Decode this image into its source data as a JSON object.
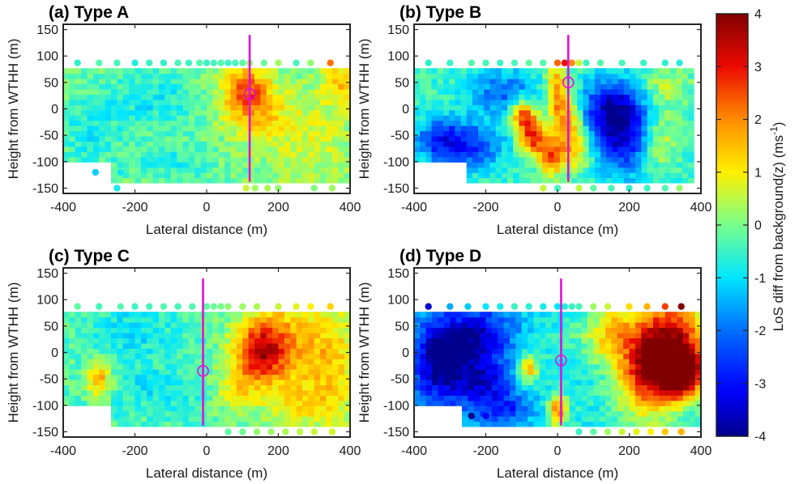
{
  "colorbar": {
    "label": "LoS diff from background(z) (ms",
    "label_sup": "-1",
    "label_close": ")",
    "min": -4,
    "max": 4,
    "ticks": [
      4,
      3,
      2,
      1,
      0,
      -1,
      -2,
      -3,
      -4
    ],
    "colormap": "jet"
  },
  "chart_data": [
    {
      "type": "heatmap",
      "title": "(a) Type A",
      "xlabel": "Lateral distance (m)",
      "ylabel": "Height from WTHH (m)",
      "xlim": [
        -400,
        400
      ],
      "ylim": [
        -160,
        160
      ],
      "xticks": [
        -400,
        -200,
        0,
        200,
        400
      ],
      "yticks": [
        150,
        100,
        50,
        0,
        -50,
        -100,
        -150
      ],
      "data_region": {
        "x": [
          -400,
          400
        ],
        "y": [
          -140,
          77
        ]
      },
      "marker_line_x": 120,
      "marker_circle": {
        "x": 120,
        "y": 28
      },
      "baseline": 0.0,
      "features": [
        {
          "x": 110,
          "y": 35,
          "value": 2.2,
          "sx": 45,
          "sy": 35
        },
        {
          "x": 150,
          "y": -10,
          "value": 1.0,
          "sx": 70,
          "sy": 40
        },
        {
          "x": 380,
          "y": 50,
          "value": 1.4,
          "sx": 40,
          "sy": 30
        },
        {
          "x": -150,
          "y": 20,
          "value": -0.9,
          "sx": 90,
          "sy": 40
        },
        {
          "x": -330,
          "y": -40,
          "value": -0.8,
          "sx": 60,
          "sy": 50
        },
        {
          "x": -100,
          "y": -100,
          "value": -0.7,
          "sx": 90,
          "sy": 30
        },
        {
          "x": 300,
          "y": -60,
          "value": 0.6,
          "sx": 80,
          "sy": 60
        }
      ],
      "scatter_top": {
        "y": 87,
        "points": [
          [
            -360,
            -0.6
          ],
          [
            -300,
            -0.3
          ],
          [
            -250,
            -0.4
          ],
          [
            -200,
            -0.7
          ],
          [
            -160,
            -0.5
          ],
          [
            -120,
            -0.6
          ],
          [
            -80,
            -0.4
          ],
          [
            -50,
            -0.5
          ],
          [
            -20,
            -0.3
          ],
          [
            0,
            -0.5
          ],
          [
            20,
            -0.4
          ],
          [
            40,
            -0.3
          ],
          [
            60,
            -0.5
          ],
          [
            80,
            -0.4
          ],
          [
            100,
            -0.2
          ],
          [
            120,
            0.2
          ],
          [
            160,
            -0.1
          ],
          [
            200,
            0.3
          ],
          [
            250,
            -0.4
          ],
          [
            290,
            0.2
          ],
          [
            345,
            2.2
          ]
        ]
      },
      "scatter_bottom": {
        "y": -150,
        "points": [
          [
            -250,
            -0.8
          ],
          [
            110,
            0.6
          ],
          [
            135,
            0.3
          ],
          [
            170,
            0.4
          ],
          [
            200,
            0.2
          ],
          [
            300,
            0.1
          ],
          [
            350,
            0.3
          ]
        ]
      },
      "scatter_extra": [
        [
          -310,
          -120,
          -1.2
        ],
        [
          -240,
          -120,
          -0.9
        ]
      ]
    },
    {
      "type": "heatmap",
      "title": "(b) Type B",
      "xlabel": "Lateral distance (m)",
      "ylabel": "Height from WTHH (m)",
      "xlim": [
        -400,
        400
      ],
      "ylim": [
        -160,
        160
      ],
      "xticks": [
        -400,
        -200,
        0,
        200,
        400
      ],
      "yticks": [
        150,
        100,
        50,
        0,
        -50,
        -100,
        -150
      ],
      "data_region": {
        "x": [
          -400,
          380
        ],
        "y": [
          -140,
          77
        ]
      },
      "marker_line_x": 30,
      "marker_circle": {
        "x": 30,
        "y": 50
      },
      "baseline": -0.5,
      "features": [
        {
          "x": 180,
          "y": -50,
          "value": -3.5,
          "sx": 70,
          "sy": 50
        },
        {
          "x": 150,
          "y": 10,
          "value": -2.5,
          "sx": 60,
          "sy": 35
        },
        {
          "x": -320,
          "y": -60,
          "value": -3.0,
          "sx": 50,
          "sy": 30
        },
        {
          "x": -220,
          "y": -70,
          "value": -2.2,
          "sx": 50,
          "sy": 30
        },
        {
          "x": -150,
          "y": 30,
          "value": -2.2,
          "sx": 60,
          "sy": 30
        },
        {
          "x": -70,
          "y": -50,
          "value": 2.8,
          "sx": 25,
          "sy": 25
        },
        {
          "x": -100,
          "y": -10,
          "value": 2.5,
          "sx": 25,
          "sy": 20
        },
        {
          "x": 0,
          "y": 30,
          "value": 2.0,
          "sx": 20,
          "sy": 50
        },
        {
          "x": 40,
          "y": -30,
          "value": 1.5,
          "sx": 25,
          "sy": 40
        },
        {
          "x": -20,
          "y": -90,
          "value": 2.2,
          "sx": 25,
          "sy": 25
        },
        {
          "x": 60,
          "y": -80,
          "value": 1.0,
          "sx": 40,
          "sy": 30
        },
        {
          "x": 280,
          "y": -60,
          "value": 1.2,
          "sx": 40,
          "sy": 40
        },
        {
          "x": 300,
          "y": 40,
          "value": 0.5,
          "sx": 50,
          "sy": 30
        }
      ],
      "scatter_top": {
        "y": 87,
        "points": [
          [
            -360,
            -0.6
          ],
          [
            -300,
            -0.5
          ],
          [
            -240,
            -0.3
          ],
          [
            -200,
            -0.4
          ],
          [
            -160,
            -0.5
          ],
          [
            -120,
            -0.4
          ],
          [
            -80,
            -0.2
          ],
          [
            -40,
            -0.3
          ],
          [
            0,
            2.3
          ],
          [
            20,
            3.0
          ],
          [
            40,
            2.0
          ],
          [
            60,
            0.6
          ],
          [
            80,
            -0.5
          ],
          [
            120,
            -0.3
          ],
          [
            180,
            -0.4
          ],
          [
            240,
            -0.5
          ],
          [
            300,
            -0.6
          ],
          [
            340,
            -0.7
          ]
        ]
      },
      "scatter_bottom": {
        "y": -150,
        "points": [
          [
            -40,
            0.6
          ],
          [
            0,
            -0.4
          ],
          [
            60,
            0.5
          ],
          [
            100,
            -0.2
          ],
          [
            150,
            -0.4
          ],
          [
            200,
            -0.6
          ],
          [
            250,
            -0.5
          ],
          [
            300,
            -0.3
          ],
          [
            340,
            0.2
          ]
        ]
      },
      "scatter_extra": [
        [
          -200,
          -120,
          -1.2
        ]
      ]
    },
    {
      "type": "heatmap",
      "title": "(c) Type C",
      "xlabel": "Lateral distance (m)",
      "ylabel": "Height from WTHH (m)",
      "xlim": [
        -400,
        400
      ],
      "ylim": [
        -160,
        160
      ],
      "xticks": [
        -400,
        -200,
        0,
        200,
        400
      ],
      "yticks": [
        150,
        100,
        50,
        0,
        -50,
        -100,
        -150
      ],
      "data_region": {
        "x": [
          -400,
          400
        ],
        "y": [
          -140,
          77
        ]
      },
      "marker_line_x": -10,
      "marker_circle": {
        "x": -10,
        "y": -35
      },
      "baseline": -0.3,
      "features": [
        {
          "x": 150,
          "y": 0,
          "value": 2.3,
          "sx": 50,
          "sy": 40
        },
        {
          "x": 200,
          "y": 20,
          "value": 1.5,
          "sx": 80,
          "sy": 60
        },
        {
          "x": 350,
          "y": -20,
          "value": 1.2,
          "sx": 60,
          "sy": 90
        },
        {
          "x": -300,
          "y": -50,
          "value": 1.8,
          "sx": 25,
          "sy": 25
        },
        {
          "x": -200,
          "y": 40,
          "value": -1.0,
          "sx": 80,
          "sy": 40
        },
        {
          "x": -150,
          "y": -70,
          "value": -0.9,
          "sx": 90,
          "sy": 30
        },
        {
          "x": 80,
          "y": -70,
          "value": 0.8,
          "sx": 40,
          "sy": 30
        },
        {
          "x": 250,
          "y": -100,
          "value": 0.6,
          "sx": 80,
          "sy": 30
        }
      ],
      "scatter_top": {
        "y": 87,
        "points": [
          [
            -360,
            -0.2
          ],
          [
            -300,
            -0.4
          ],
          [
            -240,
            -0.3
          ],
          [
            -200,
            -0.5
          ],
          [
            -160,
            -0.4
          ],
          [
            -120,
            -0.3
          ],
          [
            -80,
            -0.4
          ],
          [
            -40,
            -0.3
          ],
          [
            0,
            -0.2
          ],
          [
            20,
            -0.1
          ],
          [
            40,
            0.0
          ],
          [
            60,
            0.2
          ],
          [
            100,
            0.3
          ],
          [
            140,
            0.4
          ],
          [
            200,
            0.6
          ],
          [
            250,
            0.8
          ],
          [
            290,
            1.0
          ],
          [
            345,
            1.3
          ]
        ]
      },
      "scatter_bottom": {
        "y": -150,
        "points": [
          [
            60,
            -0.2
          ],
          [
            100,
            -0.1
          ],
          [
            140,
            0.2
          ],
          [
            180,
            0.3
          ],
          [
            220,
            0.4
          ],
          [
            260,
            0.5
          ],
          [
            300,
            0.6
          ],
          [
            350,
            0.7
          ]
        ]
      },
      "scatter_extra": [
        [
          -250,
          -120,
          -0.9
        ]
      ]
    },
    {
      "type": "heatmap",
      "title": "(d) Type D",
      "xlabel": "Lateral distance (m)",
      "ylabel": "Height from WTHH (m)",
      "xlim": [
        -400,
        400
      ],
      "ylim": [
        -160,
        160
      ],
      "xticks": [
        -400,
        -200,
        0,
        200,
        400
      ],
      "yticks": [
        150,
        100,
        50,
        0,
        -50,
        -100,
        -150
      ],
      "data_region": {
        "x": [
          -400,
          400
        ],
        "y": [
          -140,
          77
        ]
      },
      "marker_line_x": 10,
      "marker_circle": {
        "x": 10,
        "y": -15
      },
      "baseline": -0.8,
      "features": [
        {
          "x": -330,
          "y": -20,
          "value": -3.8,
          "sx": 60,
          "sy": 60
        },
        {
          "x": -220,
          "y": 30,
          "value": -3.5,
          "sx": 70,
          "sy": 40
        },
        {
          "x": -200,
          "y": -60,
          "value": -3.0,
          "sx": 60,
          "sy": 30
        },
        {
          "x": -150,
          "y": -110,
          "value": -2.5,
          "sx": 60,
          "sy": 20
        },
        {
          "x": 320,
          "y": 20,
          "value": 3.2,
          "sx": 70,
          "sy": 60
        },
        {
          "x": 350,
          "y": -40,
          "value": 3.5,
          "sx": 40,
          "sy": 30
        },
        {
          "x": 250,
          "y": -40,
          "value": 2.5,
          "sx": 60,
          "sy": 60
        },
        {
          "x": 150,
          "y": 40,
          "value": 1.0,
          "sx": 50,
          "sy": 40
        },
        {
          "x": -80,
          "y": -30,
          "value": 1.5,
          "sx": 20,
          "sy": 20
        },
        {
          "x": 0,
          "y": -110,
          "value": 2.2,
          "sx": 20,
          "sy": 20
        },
        {
          "x": 50,
          "y": 20,
          "value": -0.5,
          "sx": 60,
          "sy": 30
        }
      ],
      "scatter_top": {
        "y": 87,
        "points": [
          [
            -360,
            -3.5
          ],
          [
            -300,
            -1.5
          ],
          [
            -250,
            -1.2
          ],
          [
            -200,
            -1.0
          ],
          [
            -160,
            -0.8
          ],
          [
            -120,
            -0.5
          ],
          [
            -80,
            -0.6
          ],
          [
            -40,
            -0.8
          ],
          [
            0,
            -1.0
          ],
          [
            20,
            -0.7
          ],
          [
            40,
            -0.5
          ],
          [
            60,
            -0.4
          ],
          [
            100,
            0.3
          ],
          [
            140,
            0.6
          ],
          [
            200,
            1.2
          ],
          [
            250,
            1.6
          ],
          [
            300,
            2.6
          ],
          [
            345,
            4.0
          ]
        ]
      },
      "scatter_bottom": {
        "y": -150,
        "points": [
          [
            60,
            -0.5
          ],
          [
            100,
            -0.2
          ],
          [
            140,
            0.3
          ],
          [
            180,
            0.6
          ],
          [
            220,
            0.8
          ],
          [
            260,
            1.0
          ],
          [
            300,
            1.4
          ],
          [
            345,
            1.6
          ]
        ]
      },
      "scatter_extra": [
        [
          -240,
          -120,
          -4.0
        ],
        [
          -200,
          -120,
          -3.2
        ]
      ]
    }
  ]
}
